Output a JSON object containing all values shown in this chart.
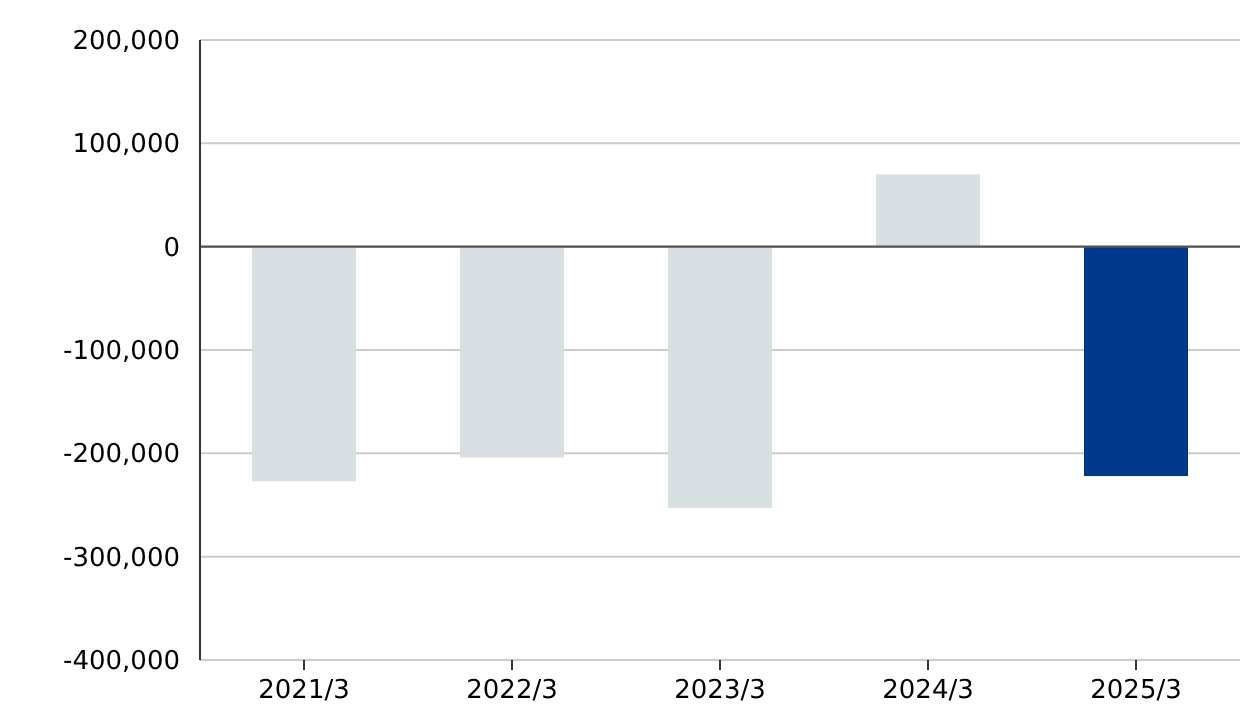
{
  "chart_data": {
    "type": "bar",
    "categories": [
      "2021/3",
      "2022/3",
      "2023/3",
      "2024/3",
      "2025/3"
    ],
    "values": [
      -227000,
      -204000,
      -253000,
      70000,
      -222000
    ],
    "colors": [
      "#d8dfe2",
      "#d8dfe2",
      "#d8dfe2",
      "#d8dfe2",
      "#00388b"
    ],
    "ylim": [
      -400000,
      200000
    ],
    "yticks": [
      {
        "value": -400000,
        "label": "-400,000"
      },
      {
        "value": -300000,
        "label": "-300,000"
      },
      {
        "value": -200000,
        "label": "-200,000"
      },
      {
        "value": -100000,
        "label": "-100,000"
      },
      {
        "value": 0,
        "label": "0"
      },
      {
        "value": 100000,
        "label": "100,000"
      },
      {
        "value": 200000,
        "label": "200,000"
      }
    ],
    "grid": "y"
  }
}
